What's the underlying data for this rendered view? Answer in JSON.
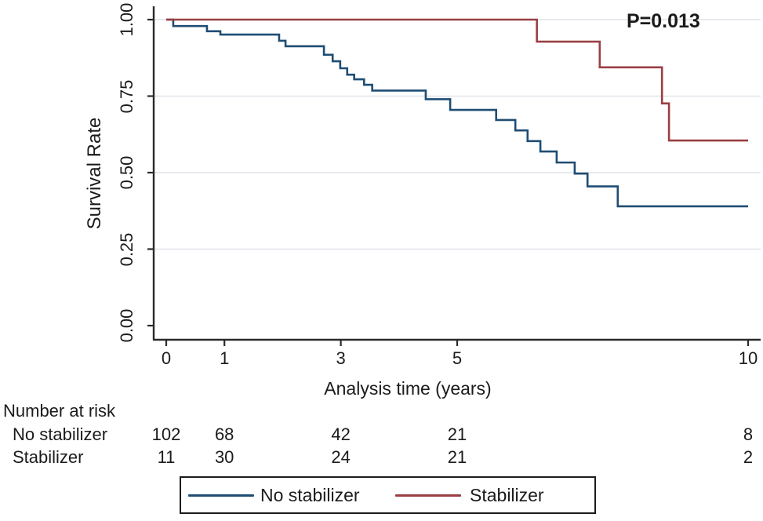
{
  "chart_data": {
    "type": "line",
    "subtype": "kaplan-meier-step-survival",
    "title": "",
    "xlabel": "Analysis time (years)",
    "ylabel": "Survival Rate",
    "annotation": "P=0.013",
    "xlim": [
      0,
      10
    ],
    "ylim": [
      0.0,
      1.0
    ],
    "x_ticks": [
      "0",
      "1",
      "3",
      "5",
      "10"
    ],
    "x_tick_values": [
      0,
      1,
      3,
      5,
      10
    ],
    "y_ticks": [
      "0.00",
      "0.25",
      "0.50",
      "0.75",
      "1.00"
    ],
    "y_tick_values": [
      0.0,
      0.25,
      0.5,
      0.75,
      1.0
    ],
    "grid": "horizontal-at-y-ticks",
    "legend_position": "bottom-framed-box",
    "series": [
      {
        "name": "No stabilizer",
        "color": "#1f4d73",
        "steps": [
          [
            0,
            1.0
          ],
          [
            0.12,
            0.979
          ],
          [
            0.7,
            0.962
          ],
          [
            0.93,
            0.951
          ],
          [
            1.94,
            0.931
          ],
          [
            2.05,
            0.913
          ],
          [
            2.71,
            0.885
          ],
          [
            2.86,
            0.864
          ],
          [
            2.99,
            0.841
          ],
          [
            3.11,
            0.82
          ],
          [
            3.23,
            0.805
          ],
          [
            3.4,
            0.787
          ],
          [
            3.54,
            0.768
          ],
          [
            4.46,
            0.74
          ],
          [
            4.88,
            0.705
          ],
          [
            5.67,
            0.672
          ],
          [
            6.0,
            0.638
          ],
          [
            6.21,
            0.603
          ],
          [
            6.43,
            0.569
          ],
          [
            6.71,
            0.533
          ],
          [
            7.02,
            0.497
          ],
          [
            7.24,
            0.455
          ],
          [
            7.76,
            0.39
          ],
          [
            10,
            0.39
          ]
        ]
      },
      {
        "name": "Stabilizer",
        "color": "#9a3f44",
        "steps": [
          [
            0,
            1.0
          ],
          [
            6.37,
            0.928
          ],
          [
            7.45,
            0.844
          ],
          [
            8.52,
            0.726
          ],
          [
            8.64,
            0.605
          ],
          [
            10,
            0.605
          ]
        ]
      }
    ],
    "risk_table": {
      "title": "Number at risk",
      "times": [
        0,
        1,
        3,
        5,
        10
      ],
      "rows": [
        {
          "label": "No stabilizer",
          "counts": [
            "102",
            "68",
            "42",
            "21",
            "8"
          ]
        },
        {
          "label": "Stabilizer",
          "counts": [
            "11",
            "30",
            "24",
            "21",
            "2"
          ]
        }
      ]
    },
    "legend": [
      {
        "label": "No stabilizer",
        "color": "#1f4d73"
      },
      {
        "label": "Stabilizer",
        "color": "#9a3f44"
      }
    ]
  },
  "colors": {
    "background": "#ffffff",
    "axis": "#2a2a2a",
    "gridline": "#dfe4ea",
    "text": "#1b1b1b",
    "no_stabilizer_line": "#1f4d73",
    "stabilizer_line": "#9a3f44"
  }
}
